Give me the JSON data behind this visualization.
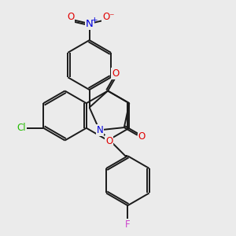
{
  "bg_color": "#ebebeb",
  "bond_color": "#1a1a1a",
  "atom_colors": {
    "O": "#e00000",
    "N": "#0000dd",
    "Cl": "#22bb00",
    "F": "#cc44cc"
  },
  "lw": 1.4,
  "fs": 8.5
}
